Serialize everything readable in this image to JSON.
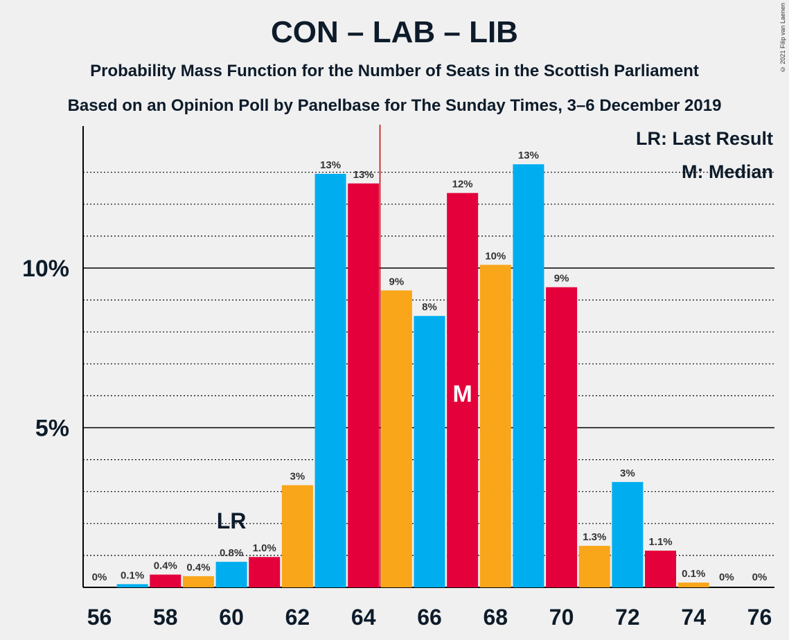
{
  "header": {
    "title": "CON – LAB – LIB",
    "subtitle1": "Probability Mass Function for the Number of Seats in the Scottish Parliament",
    "subtitle2": "Based on an Opinion Poll by Panelbase for The Sunday Times, 3–6 December 2019",
    "copyright": "© 2021 Filip van Laenen"
  },
  "chart_data": {
    "type": "bar",
    "x": [
      56,
      57,
      58,
      59,
      60,
      61,
      62,
      63,
      64,
      65,
      66,
      67,
      68,
      69,
      70,
      71,
      72,
      73,
      74,
      75,
      76
    ],
    "values": [
      0,
      0.1,
      0.4,
      0.35,
      0.8,
      0.95,
      3.2,
      12.95,
      12.65,
      9.3,
      8.5,
      12.35,
      10.1,
      13.25,
      9.4,
      1.3,
      3.3,
      1.15,
      0.15,
      0,
      0
    ],
    "labels": [
      "0%",
      "0.1%",
      "0.4%",
      "0.4%",
      "0.8%",
      "1.0%",
      "3%",
      "13%",
      "13%",
      "9%",
      "8%",
      "12%",
      "10%",
      "13%",
      "9%",
      "1.3%",
      "3%",
      "1.1%",
      "0.1%",
      "0%",
      "0%"
    ],
    "bar_colors": [
      "#00aeef",
      "#00aeef",
      "#e4003b",
      "#faa61a",
      "#00aeef",
      "#e4003b",
      "#faa61a",
      "#00aeef",
      "#e4003b",
      "#faa61a",
      "#00aeef",
      "#e4003b",
      "#faa61a",
      "#00aeef",
      "#e4003b",
      "#faa61a",
      "#00aeef",
      "#e4003b",
      "#faa61a",
      "#00aeef",
      "#e4003b"
    ],
    "x_ticks": [
      "56",
      "58",
      "60",
      "62",
      "64",
      "66",
      "68",
      "70",
      "72",
      "74",
      "76"
    ],
    "y_ticks": [
      {
        "value": 5,
        "label": "5%"
      },
      {
        "value": 10,
        "label": "10%"
      }
    ],
    "ylim": [
      0,
      14.4
    ],
    "grid": "dotted at every 1%, solid at every 5%",
    "last_result": {
      "seat": 60,
      "marker": "LR"
    },
    "median": {
      "seat": 67,
      "marker": "M"
    },
    "majority_line_seat": 64.5,
    "legend": {
      "lr": "LR: Last Result",
      "m": "M: Median",
      "position": "top-right"
    }
  }
}
